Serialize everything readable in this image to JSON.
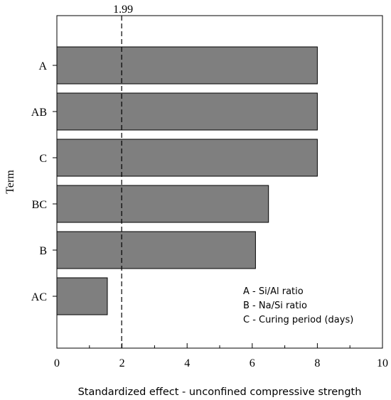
{
  "chart_data": {
    "type": "bar",
    "orientation": "horizontal",
    "categories": [
      "A",
      "AB",
      "C",
      "BC",
      "B",
      "AC"
    ],
    "values": [
      8.0,
      8.0,
      8.0,
      6.5,
      6.1,
      1.55
    ],
    "xlabel": "Standardized effect - unconfined compressive strength",
    "ylabel": "Term",
    "xlim": [
      0,
      10
    ],
    "xticks": [
      "0",
      "2",
      "4",
      "6",
      "8",
      "10"
    ],
    "reference_line": {
      "value": 1.99,
      "label": "1.99",
      "style": "dashed"
    },
    "legend_notes": [
      "A - Si/Al ratio",
      "B - Na/Si ratio",
      "C - Curing period (days)"
    ],
    "legend_placement": "bottom-right",
    "bar_color": "#7f7f7f",
    "grid": false
  }
}
